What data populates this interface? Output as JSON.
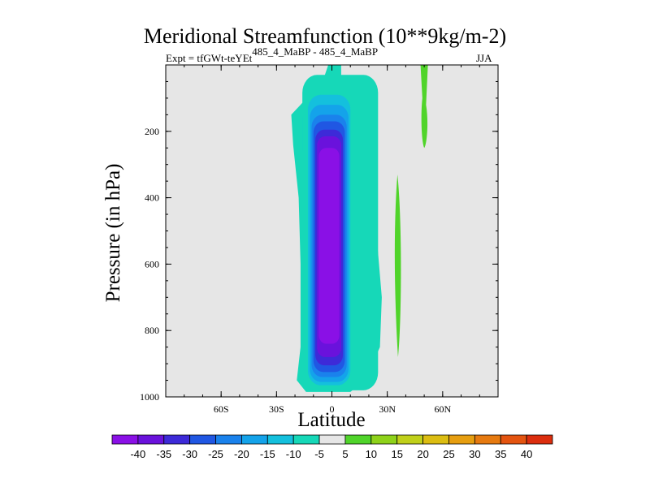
{
  "chart_data": {
    "type": "heatmap",
    "title": "Meridional Streamfunction (10**9kg/m-2)",
    "subtitle_left": "Expt = tfGWt-teYEt",
    "subtitle_sup": "485_4_MaBP - 485_4_MaBP",
    "subtitle_right": "JJA",
    "xlabel": "Latitude",
    "ylabel": "Pressure (in hPa)",
    "xlim": [
      -90,
      90
    ],
    "ylim": [
      1000,
      0
    ],
    "x_ticks": [
      {
        "value": -60,
        "label": "60S"
      },
      {
        "value": -30,
        "label": "30S"
      },
      {
        "value": 0,
        "label": "0"
      },
      {
        "value": 30,
        "label": "30N"
      },
      {
        "value": 60,
        "label": "60N"
      }
    ],
    "y_ticks": [
      {
        "value": 200,
        "label": "200"
      },
      {
        "value": 400,
        "label": "400"
      },
      {
        "value": 600,
        "label": "600"
      },
      {
        "value": 800,
        "label": "800"
      },
      {
        "value": 1000,
        "label": "1000"
      }
    ],
    "colorbar": {
      "labels": [
        "-40",
        "-35",
        "-30",
        "-25",
        "-20",
        "-15",
        "-10",
        "-5",
        "5",
        "10",
        "15",
        "20",
        "25",
        "30",
        "35",
        "40"
      ],
      "colors": [
        "#8a10e6",
        "#6a12dc",
        "#3d2ad8",
        "#2057e3",
        "#1a82ec",
        "#14a3ea",
        "#14c0dd",
        "#16d8b8",
        "#e6e6e6",
        "#50d42a",
        "#8ed21a",
        "#c0d01a",
        "#dcbd12",
        "#e69e10",
        "#e67a10",
        "#e45410",
        "#dc2e0e"
      ]
    },
    "features": [
      {
        "name": "negative-cell-equatorial",
        "x_range": [
          -21,
          28
        ],
        "p_range": [
          0,
          980
        ],
        "min_value": -40,
        "center_lat": 0,
        "center_p": 550
      },
      {
        "name": "positive-band-35N",
        "x_range": [
          33,
          38
        ],
        "p_range": [
          330,
          880
        ],
        "value": 5
      },
      {
        "name": "positive-band-50N",
        "x_range": [
          47,
          52
        ],
        "p_range": [
          0,
          250
        ],
        "value": 5
      }
    ],
    "grid": false,
    "background_color": "#e6e6e6"
  }
}
